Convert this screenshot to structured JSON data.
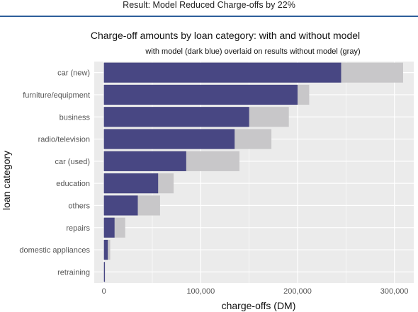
{
  "slide": {
    "title": "Result: Model Reduced Charge-offs by 22%"
  },
  "colors": {
    "with_model": "#484783",
    "without_model": "#c8c7c9",
    "panel_bg": "#ebebeb",
    "grid": "#ffffff",
    "header_rule": "#2d5f9a"
  },
  "chart_data": {
    "type": "bar",
    "orientation": "horizontal",
    "title": "Charge-off amounts by loan category: with and without model",
    "subtitle": "with model (dark blue) overlaid on results without model (gray)",
    "xlabel": "charge-offs (DM)",
    "ylabel": "loan category",
    "xlim": [
      -10000,
      320000
    ],
    "x_ticks": [
      0,
      100000,
      200000,
      300000
    ],
    "x_tick_labels": [
      "0",
      "100,000",
      "200,000",
      "300,000"
    ],
    "grid": true,
    "categories": [
      "car (new)",
      "furniture/equipment",
      "business",
      "radio/television",
      "car (used)",
      "education",
      "others",
      "repairs",
      "domestic appliances",
      "retraining"
    ],
    "series": [
      {
        "values": [
          309000,
          212000,
          191000,
          173000,
          140000,
          72000,
          58000,
          22000,
          6500,
          1200
        ]
      },
      {
        "values": [
          245000,
          200000,
          150000,
          135000,
          85000,
          56000,
          35000,
          11000,
          4000,
          1000
        ]
      }
    ]
  }
}
